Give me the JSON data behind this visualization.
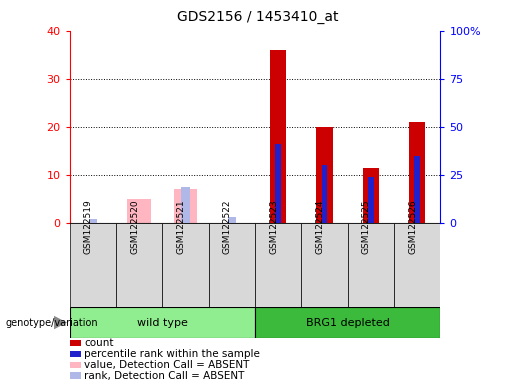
{
  "title": "GDS2156 / 1453410_at",
  "samples": [
    "GSM122519",
    "GSM122520",
    "GSM122521",
    "GSM122522",
    "GSM122523",
    "GSM122524",
    "GSM122525",
    "GSM122526"
  ],
  "count_values": [
    0,
    0,
    0,
    0,
    36,
    20,
    11.5,
    21
  ],
  "percentile_rank_values": [
    0,
    0,
    0,
    0,
    16.5,
    12,
    9.5,
    14
  ],
  "absent_value_values": [
    0,
    5,
    7,
    0,
    0,
    0,
    0,
    0
  ],
  "absent_rank_values": [
    0.8,
    0,
    7.5,
    1.2,
    0,
    0,
    0,
    0
  ],
  "left_ylim": [
    0,
    40
  ],
  "right_ylim": [
    0,
    100
  ],
  "left_yticks": [
    0,
    10,
    20,
    30,
    40
  ],
  "right_yticks": [
    0,
    25,
    50,
    75,
    100
  ],
  "right_yticklabels": [
    "0",
    "25",
    "50",
    "75",
    "100%"
  ],
  "color_count": "#cc0000",
  "color_rank": "#2020cc",
  "color_absent_value": "#ffb6c1",
  "color_absent_rank": "#b0b8e8",
  "wt_color": "#90ee90",
  "brg_color": "#3cba3c",
  "sample_bg": "#d8d8d8",
  "plot_bg": "#ffffff",
  "legend_items": [
    {
      "label": "count",
      "color": "#cc0000"
    },
    {
      "label": "percentile rank within the sample",
      "color": "#2020cc"
    },
    {
      "label": "value, Detection Call = ABSENT",
      "color": "#ffb6c1"
    },
    {
      "label": "rank, Detection Call = ABSENT",
      "color": "#b0b8e8"
    }
  ]
}
